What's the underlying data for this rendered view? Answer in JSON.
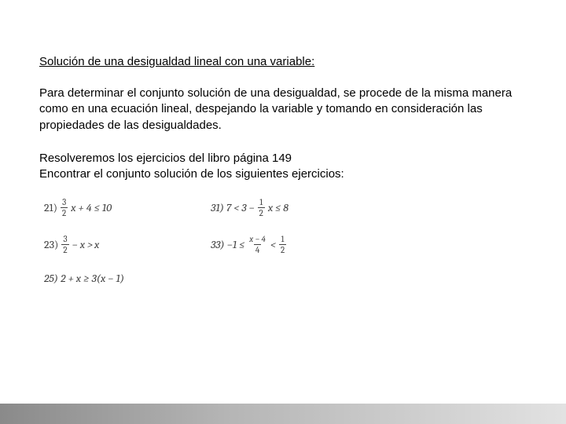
{
  "heading": "Solución de una desigualdad lineal con una variable:",
  "paragraph1": "Para determinar el conjunto solución de una desigualdad, se procede de la misma manera como en una ecuación lineal, despejando la variable y tomando en consideración las propiedades de las desigualdades.",
  "paragraph2_line1": "Resolveremos los ejercicios del libro página 149",
  "paragraph2_line2": "Encontrar el conjunto solución de los siguientes ejercicios:",
  "exercises": {
    "e21": {
      "num": "21)",
      "frac_n": "3",
      "frac_d": "2",
      "tail": "x + 4 ≤ 10"
    },
    "e23": {
      "num": "23)",
      "frac_n": "3",
      "frac_d": "2",
      "mid": " − x > ",
      "tail": "x"
    },
    "e25": {
      "num": "25) 2 + x ≥ 3(x − 1)"
    },
    "e31": {
      "num": "31) 7 < 3 −",
      "frac_n": "1",
      "frac_d": "2",
      "tail": "x ≤ 8"
    },
    "e33": {
      "num": "33) −1 ≤",
      "frac_n": "x − 4",
      "frac_d": "4",
      "mid": "<",
      "frac2_n": "1",
      "frac2_d": "2"
    }
  },
  "styles": {
    "text_color": "#000000",
    "math_color": "#404040",
    "body_fontsize": 15,
    "math_fontsize": 14,
    "background": "#ffffff",
    "bottom_bar_gradient": [
      "#8a8a8a",
      "#b5b5b5",
      "#e2e2e2"
    ]
  }
}
